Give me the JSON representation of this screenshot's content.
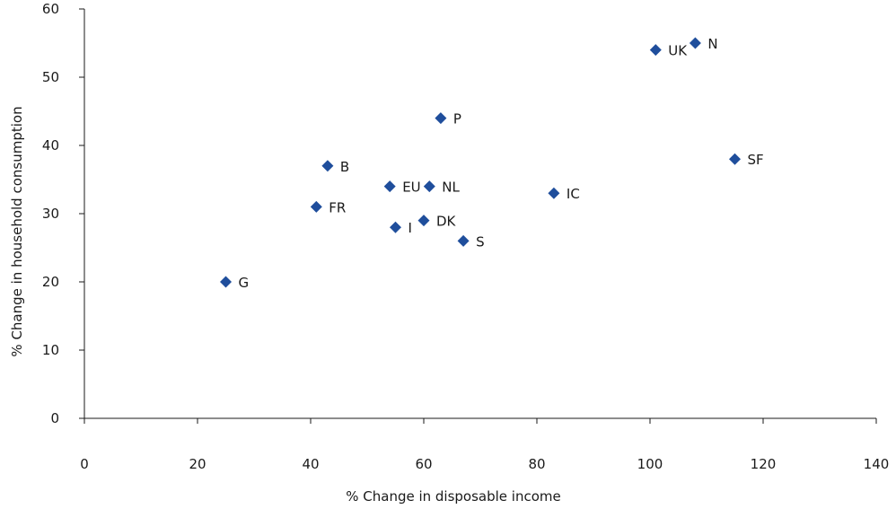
{
  "chart_data": {
    "type": "scatter",
    "xlabel": "% Change in disposable income",
    "ylabel": "% Change in household consumption",
    "xlim": [
      0,
      140
    ],
    "ylim": [
      0,
      60
    ],
    "xticks": [
      0,
      20,
      40,
      60,
      80,
      100,
      120,
      140
    ],
    "yticks": [
      0,
      10,
      20,
      30,
      40,
      50,
      60
    ],
    "grid": false,
    "marker": "diamond",
    "marker_color": "#1f4e9c",
    "points": [
      {
        "label": "G",
        "x": 25,
        "y": 20
      },
      {
        "label": "FR",
        "x": 41,
        "y": 31
      },
      {
        "label": "B",
        "x": 43,
        "y": 37
      },
      {
        "label": "EU",
        "x": 54,
        "y": 34
      },
      {
        "label": "I",
        "x": 55,
        "y": 28
      },
      {
        "label": "DK",
        "x": 60,
        "y": 29
      },
      {
        "label": "NL",
        "x": 61,
        "y": 34
      },
      {
        "label": "P",
        "x": 63,
        "y": 44
      },
      {
        "label": "S",
        "x": 67,
        "y": 26
      },
      {
        "label": "IC",
        "x": 83,
        "y": 33
      },
      {
        "label": "UK",
        "x": 101,
        "y": 54
      },
      {
        "label": "N",
        "x": 108,
        "y": 55
      },
      {
        "label": "SF",
        "x": 115,
        "y": 38
      }
    ]
  }
}
